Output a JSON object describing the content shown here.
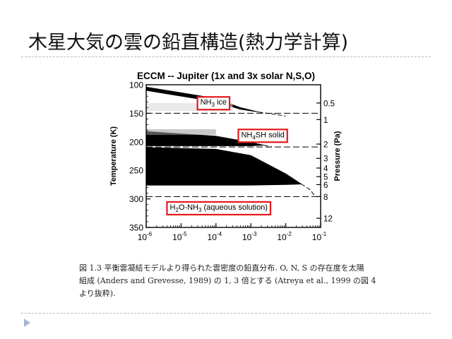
{
  "slide": {
    "title": "木星大気の雲の鉛直構造(熱力学計算)",
    "caption_lines": [
      "図 1.3   平衡雲凝結モデルより得られた雲密度の鉛直分布. O, N, S の存在度を太陽",
      "組成 (Anders and Grevesse, 1989) の 1, 3 倍とする (Atreya et al., 1999 の図 4",
      "より抜粋)."
    ]
  },
  "chart_data": {
    "type": "area",
    "title": "ECCM -- Jupiter (1x and 3x solar N,S,O)",
    "xlabel": "",
    "ylabel": "Temperature (K)",
    "y2label": "Pressure (Pa)",
    "xscale": "log",
    "xlim": [
      1e-06,
      0.1
    ],
    "ylim": [
      100,
      350
    ],
    "y_inverted": true,
    "x_ticks": [
      1e-06,
      1e-05,
      0.0001,
      0.001,
      0.01,
      0.1
    ],
    "x_tick_labels": [
      {
        "base": "10",
        "exp": "-6"
      },
      {
        "base": "10",
        "exp": "-5"
      },
      {
        "base": "10",
        "exp": "-4"
      },
      {
        "base": "10",
        "exp": "-3"
      },
      {
        "base": "10",
        "exp": "-2"
      },
      {
        "base": "10",
        "exp": "-1"
      }
    ],
    "y_ticks": [
      100,
      150,
      200,
      250,
      300,
      350
    ],
    "y_tick_labels": [
      "100",
      "150",
      "200",
      "250",
      "300",
      "350"
    ],
    "right_ticks": [
      {
        "label": "0.5",
        "temp": 132
      },
      {
        "label": "1",
        "temp": 161
      },
      {
        "label": "2",
        "temp": 204
      },
      {
        "label": "3",
        "temp": 229
      },
      {
        "label": "4",
        "temp": 246
      },
      {
        "label": "5",
        "temp": 261
      },
      {
        "label": "6",
        "temp": 275
      },
      {
        "label": "8",
        "temp": 296
      },
      {
        "label": "12",
        "temp": 334
      }
    ],
    "cloud_bases": [
      {
        "name": "NH3",
        "temp": 150
      },
      {
        "name": "NH4SH",
        "temp": 209
      },
      {
        "name": "H2O-NH3",
        "temp": 296
      }
    ],
    "clouds": [
      {
        "name": "NH3 ice",
        "label": {
          "main": "NH",
          "sub": "3",
          "rest": " ice"
        },
        "label_at": {
          "x": 8.5e-05,
          "y": 130
        },
        "top": [
          [
            1e-06,
            104
          ],
          [
            0.0001,
            124
          ],
          [
            0.0005,
            140
          ],
          [
            0.0017,
            148
          ]
        ],
        "bottom": [
          [
            1e-06,
            110
          ],
          [
            0.0001,
            130
          ],
          [
            0.0005,
            143
          ],
          [
            0.0017,
            148
          ]
        ],
        "dashed_extension": [
          [
            0.0017,
            148
          ],
          [
            0.005,
            152
          ],
          [
            0.01,
            155
          ]
        ]
      },
      {
        "name": "NH4SH solid",
        "label": {
          "main": "NH",
          "sub": "4",
          "rest": "SH solid"
        },
        "label_at": {
          "x": 0.0022,
          "y": 187
        },
        "top": [
          [
            1e-06,
            182
          ],
          [
            0.0001,
            190
          ],
          [
            0.001,
            201
          ],
          [
            0.0024,
            206
          ]
        ],
        "bottom": [
          [
            1e-06,
            207
          ],
          [
            0.0001,
            207
          ],
          [
            0.001,
            207
          ],
          [
            0.0024,
            206
          ]
        ],
        "dashed_extension": [
          [
            0.0024,
            206
          ],
          [
            0.004,
            209
          ]
        ]
      },
      {
        "name": "H2O-NH3 (aqueous solution)",
        "label": {
          "main": "H",
          "sub": "2",
          "rest": "O-NH",
          "sub2": "3",
          "rest2": " (aqueous solution)"
        },
        "label_at": {
          "x": 0.00012,
          "y": 314
        },
        "top": [
          [
            1e-06,
            210
          ],
          [
            0.0001,
            213
          ],
          [
            0.001,
            224
          ],
          [
            0.01,
            256
          ],
          [
            0.028,
            274
          ]
        ],
        "bottom": [
          [
            1e-06,
            276
          ],
          [
            0.0001,
            276
          ],
          [
            0.001,
            276
          ],
          [
            0.01,
            275
          ],
          [
            0.028,
            274
          ]
        ],
        "dashed_extension": [
          [
            0.028,
            274
          ],
          [
            0.05,
            284
          ],
          [
            0.07,
            296
          ]
        ]
      }
    ],
    "annotation_color": "#e3191b"
  }
}
